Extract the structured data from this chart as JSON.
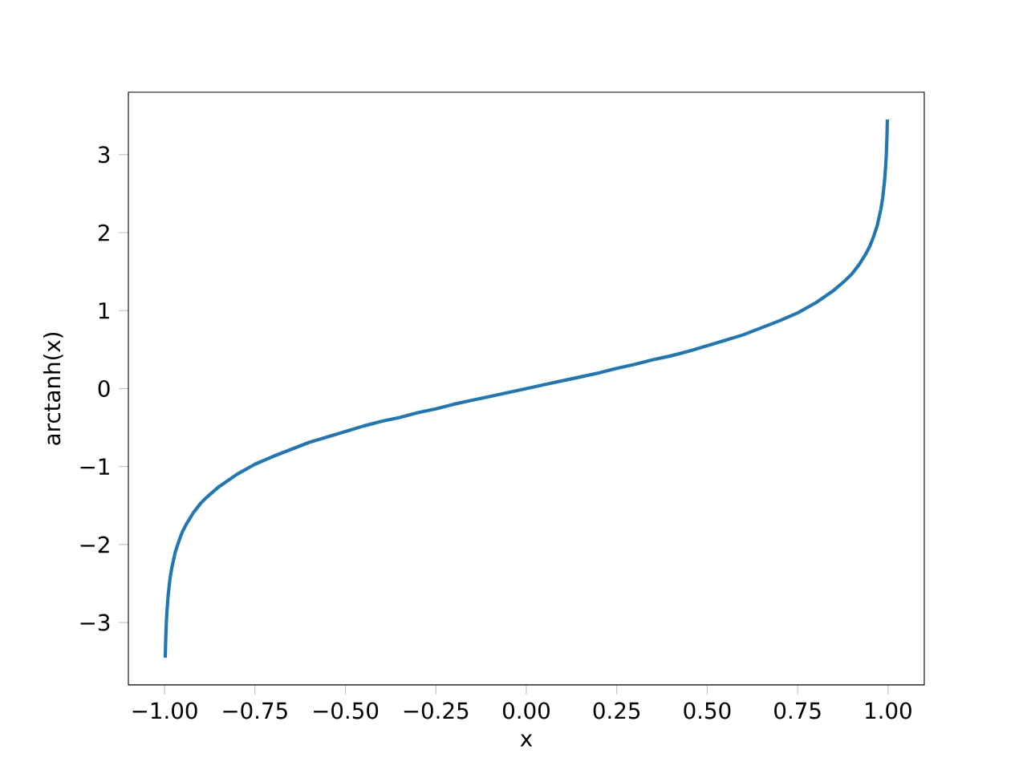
{
  "chart_data": {
    "type": "line",
    "xlabel": "x",
    "ylabel": "arctanh(x)",
    "color": "#1f77b4",
    "x": [
      -0.998,
      -0.997,
      -0.995,
      -0.993,
      -0.99,
      -0.985,
      -0.98,
      -0.97,
      -0.96,
      -0.95,
      -0.94,
      -0.92,
      -0.9,
      -0.88,
      -0.85,
      -0.8,
      -0.75,
      -0.7,
      -0.65,
      -0.6,
      -0.55,
      -0.5,
      -0.45,
      -0.4,
      -0.35,
      -0.3,
      -0.25,
      -0.2,
      -0.15,
      -0.1,
      -0.05,
      0,
      0.05,
      0.1,
      0.15,
      0.2,
      0.25,
      0.3,
      0.35,
      0.4,
      0.45,
      0.5,
      0.55,
      0.6,
      0.65,
      0.7,
      0.75,
      0.8,
      0.85,
      0.88,
      0.9,
      0.92,
      0.94,
      0.95,
      0.96,
      0.97,
      0.98,
      0.985,
      0.99,
      0.993,
      0.995,
      0.997,
      0.998
    ],
    "values": [
      -3.45,
      -3.25,
      -2.99,
      -2.83,
      -2.65,
      -2.44,
      -2.3,
      -2.09,
      -1.95,
      -1.83,
      -1.74,
      -1.59,
      -1.47,
      -1.38,
      -1.26,
      -1.1,
      -0.97,
      -0.87,
      -0.78,
      -0.69,
      -0.62,
      -0.55,
      -0.48,
      -0.42,
      -0.37,
      -0.31,
      -0.26,
      -0.2,
      -0.15,
      -0.1,
      -0.05,
      0,
      0.05,
      0.1,
      0.15,
      0.2,
      0.26,
      0.31,
      0.37,
      0.42,
      0.48,
      0.55,
      0.62,
      0.69,
      0.78,
      0.87,
      0.97,
      1.1,
      1.26,
      1.38,
      1.47,
      1.59,
      1.74,
      1.83,
      1.95,
      2.09,
      2.3,
      2.44,
      2.65,
      2.83,
      2.99,
      3.25,
      3.45
    ],
    "xlim": [
      -1.1,
      1.1
    ],
    "ylim": [
      -3.8,
      3.8
    ],
    "xticks": [
      {
        "value": -1,
        "label": "−1.00"
      },
      {
        "value": -0.75,
        "label": "−0.75"
      },
      {
        "value": -0.5,
        "label": "−0.50"
      },
      {
        "value": -0.25,
        "label": "−0.25"
      },
      {
        "value": 0,
        "label": "0.00"
      },
      {
        "value": 0.25,
        "label": "0.25"
      },
      {
        "value": 0.5,
        "label": "0.50"
      },
      {
        "value": 0.75,
        "label": "0.75"
      },
      {
        "value": 1,
        "label": "1.00"
      }
    ],
    "yticks": [
      {
        "value": -3,
        "label": "−3"
      },
      {
        "value": -2,
        "label": "−2"
      },
      {
        "value": -1,
        "label": "−1"
      },
      0,
      1,
      2,
      3
    ]
  }
}
